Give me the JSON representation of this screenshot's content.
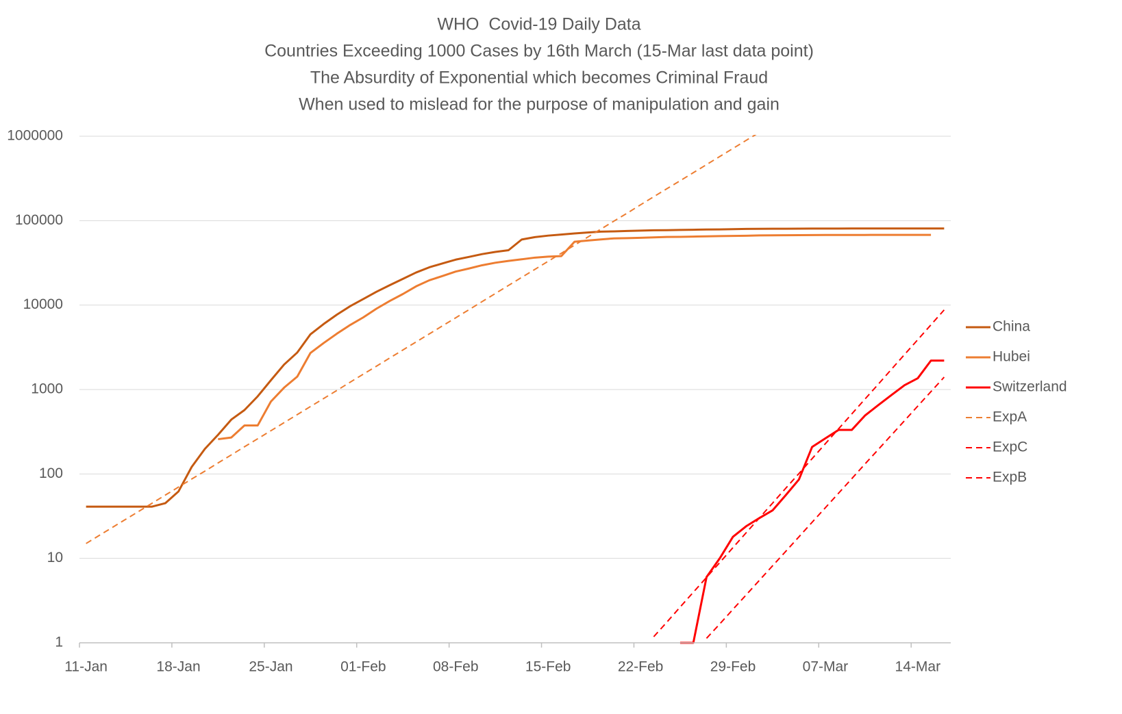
{
  "chart_data": {
    "type": "line",
    "title": [
      "WHO  Covid-19 Daily Data",
      "Countries Exceeding 1000 Cases by 16th March (15-Mar last data point)",
      "The Absurdity of Exponential which becomes Criminal Fraud",
      "When used to mislead for the purpose of manipulation and gain"
    ],
    "categories": [
      "11-Jan",
      null,
      null,
      null,
      null,
      null,
      null,
      "18-Jan",
      null,
      null,
      null,
      null,
      null,
      null,
      "25-Jan",
      null,
      null,
      null,
      null,
      null,
      null,
      "01-Feb",
      null,
      null,
      null,
      null,
      null,
      null,
      "08-Feb",
      null,
      null,
      null,
      null,
      null,
      null,
      "15-Feb",
      null,
      null,
      null,
      null,
      null,
      null,
      "22-Feb",
      null,
      null,
      null,
      null,
      null,
      null,
      "29-Feb",
      null,
      null,
      null,
      null,
      null,
      null,
      "07-Mar",
      null,
      null,
      null,
      null,
      null,
      null,
      "14-Mar",
      null,
      null
    ],
    "log_scale": true,
    "ylim": [
      1,
      1000000
    ],
    "yticks": [
      1,
      10,
      100,
      1000,
      10000,
      100000,
      1000000
    ],
    "grid": true,
    "legend": "right",
    "series": [
      {
        "name": "China",
        "color": "#c55a11",
        "dashed": false,
        "values": [
          41,
          41,
          41,
          41,
          41,
          41,
          45,
          62,
          121,
          198,
          291,
          440,
          571,
          830,
          1287,
          1975,
          2744,
          4515,
          5974,
          7711,
          9692,
          11791,
          14380,
          17205,
          20438,
          24324,
          28018,
          31161,
          34546,
          37198,
          40171,
          42638,
          44653,
          59804,
          63851,
          66492,
          68500,
          70548,
          72436,
          74185,
          74576,
          75465,
          76288,
          76936,
          77150,
          77658,
          78064,
          78497,
          78824,
          79251,
          79824,
          80026,
          80151,
          80270,
          80409,
          80552,
          80651,
          80695,
          80735,
          80754,
          80778,
          80793,
          80813,
          80824,
          80844,
          80860
        ]
      },
      {
        "name": "Hubei",
        "color": "#ed7d31",
        "dashed": false,
        "values": [
          null,
          null,
          null,
          null,
          null,
          null,
          null,
          null,
          null,
          null,
          258,
          270,
          375,
          375,
          720,
          1052,
          1423,
          2714,
          3554,
          4586,
          5806,
          7153,
          9074,
          11177,
          13522,
          16678,
          19665,
          22112,
          24953,
          27100,
          29631,
          31728,
          33366,
          34874,
          36500,
          37500,
          38000,
          56249,
          58182,
          59989,
          61682,
          62031,
          62662,
          63454,
          64084,
          64287,
          64786,
          65187,
          65596,
          65914,
          66337,
          66907,
          67103,
          67217,
          67332,
          67466,
          67592,
          67666,
          67707,
          67743,
          67760,
          67773,
          67781,
          67786,
          67790,
          null
        ]
      },
      {
        "name": "Switzerland",
        "color": "#ff0000",
        "dashed": false,
        "values": [
          null,
          null,
          null,
          null,
          null,
          null,
          null,
          null,
          null,
          null,
          null,
          null,
          null,
          null,
          null,
          null,
          null,
          null,
          null,
          null,
          null,
          null,
          null,
          null,
          null,
          null,
          null,
          null,
          null,
          null,
          null,
          null,
          null,
          null,
          null,
          null,
          null,
          null,
          null,
          null,
          null,
          null,
          null,
          null,
          null,
          1,
          1,
          6,
          10,
          18,
          24,
          30,
          37,
          56,
          86,
          209,
          264,
          332,
          332,
          491,
          652,
          858,
          1125,
          1359,
          2200,
          2200
        ]
      },
      {
        "name": "ExpA",
        "color": "#ed7d31",
        "dashed": true,
        "values": [
          15,
          18.7,
          23.3,
          29.0,
          36.1,
          45.0,
          56.1,
          69.9,
          87.0,
          108,
          135,
          168,
          210,
          261,
          325,
          405,
          505,
          629,
          783,
          976,
          1220,
          1520,
          1890,
          2360,
          2940,
          3660,
          4560,
          5680,
          7070,
          8810,
          11000,
          13700,
          17100,
          21300,
          26500,
          33000,
          41100,
          51200,
          63800,
          79500,
          99100,
          123000,
          154000,
          192000,
          239000,
          297000,
          370000,
          461000,
          575000,
          716000,
          893000,
          1110000,
          null,
          null,
          null,
          null,
          null,
          null,
          null,
          null,
          null,
          null,
          null,
          null,
          null,
          null
        ]
      },
      {
        "name": "ExpC",
        "color": "#ff0000",
        "dashed": true,
        "values": [
          null,
          null,
          null,
          null,
          null,
          null,
          null,
          null,
          null,
          null,
          null,
          null,
          null,
          null,
          null,
          null,
          null,
          null,
          null,
          null,
          null,
          null,
          null,
          null,
          null,
          null,
          null,
          null,
          null,
          null,
          null,
          null,
          null,
          null,
          null,
          null,
          null,
          null,
          null,
          null,
          null,
          null,
          null,
          1.18,
          1.76,
          2.65,
          3.97,
          5.95,
          8.92,
          13.4,
          20.1,
          30.1,
          45.1,
          67.7,
          101,
          152,
          228,
          342,
          513,
          770,
          1150,
          1730,
          2600,
          3890,
          5840,
          8760
        ]
      },
      {
        "name": "ExpB",
        "color": "#ff0000",
        "dashed": true,
        "values": [
          null,
          null,
          null,
          null,
          null,
          null,
          null,
          null,
          null,
          null,
          null,
          null,
          null,
          null,
          null,
          null,
          null,
          null,
          null,
          null,
          null,
          null,
          null,
          null,
          null,
          null,
          null,
          null,
          null,
          null,
          null,
          null,
          null,
          null,
          null,
          null,
          null,
          null,
          null,
          null,
          null,
          null,
          null,
          null,
          null,
          null,
          null,
          1.13,
          1.67,
          2.49,
          3.69,
          5.49,
          8.16,
          12.1,
          18.0,
          26.8,
          39.8,
          59.1,
          87.8,
          131,
          194,
          288,
          428,
          636,
          945,
          1400
        ]
      }
    ]
  }
}
